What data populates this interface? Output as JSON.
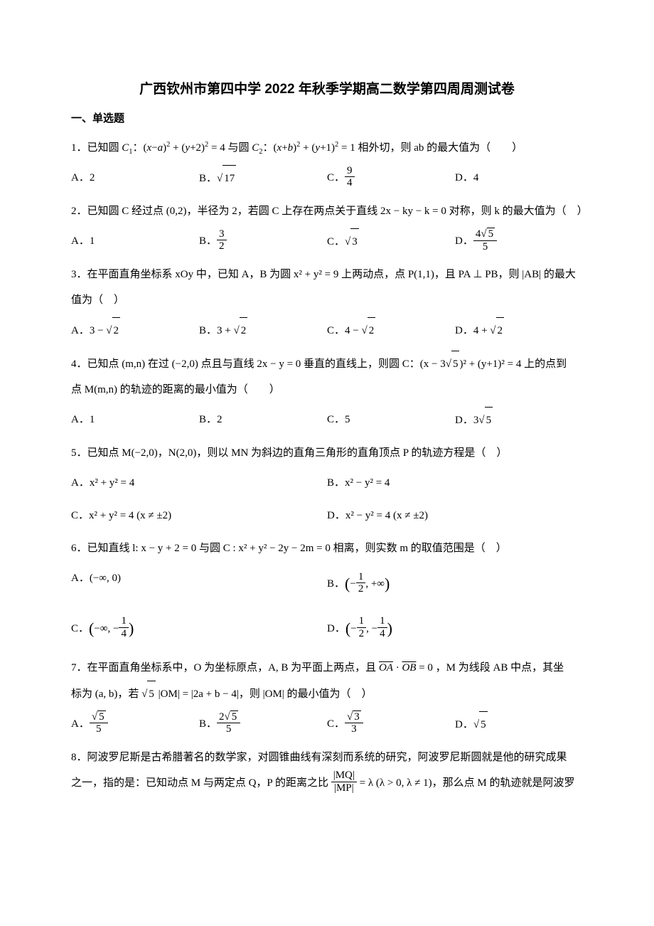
{
  "title": "广西钦州市第四中学 2022 年秋季学期高二数学第四周周测试卷",
  "section": "一、单选题",
  "q1": {
    "stem_pre": "1．已知圆",
    "c1": "C₁：(x−a)² + (y+2)² = 4",
    "mid": "与圆",
    "c2": "C₂：(x+b)² + (y+1)² = 1",
    "tail": "相外切，则 ab 的最大值为（　　）",
    "A": "A．2",
    "B_pre": "B．",
    "B_sqrt": "17",
    "C_pre": "C．",
    "C_num": "9",
    "C_den": "4",
    "D": "D．4"
  },
  "q2": {
    "stem": "2．已知圆 C 经过点 (0,2)，半径为 2，若圆 C 上存在两点关于直线 2x − ky − k = 0 对称，则 k 的最大值为（　）",
    "A": "A．1",
    "B_pre": "B．",
    "B_num": "3",
    "B_den": "2",
    "C_pre": "C．",
    "C_sqrt": "3",
    "D_pre": "D．",
    "D_num_sqrt": "5",
    "D_num_coef": "4",
    "D_den": "5"
  },
  "q3": {
    "stem": "3．在平面直角坐标系 xOy 中，已知 A，B 为圆 x² + y² = 9 上两动点，点 P(1,1)，且 PA ⊥ PB，则 |AB| 的最大值为（　）",
    "A_pre": "A．3 − ",
    "A_sqrt": "2",
    "B_pre": "B．3 + ",
    "B_sqrt": "2",
    "C_pre": "C．4 − ",
    "C_sqrt": "2",
    "D_pre": "D．4 + ",
    "D_sqrt": "2"
  },
  "q4": {
    "stem1": "4．已知点 (m,n) 在过 (−2,0) 点且与直线 2x − y = 0 垂直的直线上，则圆 C：(x − 3",
    "sqrt5": "5",
    "stem1b": ")² + (y+1)² = 4 上的点到",
    "stem2": "点 M(m,n) 的轨迹的距离的最小值为（　　）",
    "A": "A．1",
    "B": "B．2",
    "C": "C．5",
    "D_pre": "D．3",
    "D_sqrt": "5"
  },
  "q5": {
    "stem": "5．已知点 M(−2,0)，N(2,0)，则以 MN 为斜边的直角三角形的直角顶点 P 的轨迹方程是（　）",
    "A": "A．x² + y² = 4",
    "B": "B．x² − y² = 4",
    "C": "C．x² + y² = 4 (x ≠ ±2)",
    "D": "D．x² − y² = 4 (x ≠ ±2)"
  },
  "q6": {
    "stem": "6．已知直线 l: x − y + 2 = 0 与圆 C : x² + y² − 2y − 2m = 0 相离，则实数 m 的取值范围是（　）",
    "A": "A．(−∞, 0)",
    "B_pre": "B．",
    "B_open": "(−",
    "B_num": "1",
    "B_den": "2",
    "B_close": ", +∞)",
    "C_pre": "C．",
    "C_open": "(−∞, −",
    "C_num": "1",
    "C_den": "4",
    "C_close": ")",
    "D_pre": "D．",
    "D_open": "(−",
    "D1_num": "1",
    "D1_den": "2",
    "D_mid": ", −",
    "D2_num": "1",
    "D2_den": "4",
    "D_close": ")"
  },
  "q7": {
    "stem1": "7．在平面直角坐标系中，O 为坐标原点，A, B 为平面上两点，且 ",
    "vec1": "OA",
    "dot": " · ",
    "vec2": "OB",
    "stem1b": " = 0 ，M 为线段 AB 中点，其坐",
    "stem2a": "标为 (a, b)，若 ",
    "sqrt5a": "5",
    "stem2b": " |OM| = |2a + b − 4|，则 |OM| 的最小值为（　）",
    "A_pre": "A．",
    "A_num_sqrt": "5",
    "A_den": "5",
    "B_pre": "B．",
    "B_num_coef": "2",
    "B_num_sqrt": "5",
    "B_den": "5",
    "C_pre": "C．",
    "C_num_sqrt": "3",
    "C_den": "3",
    "D_pre": "D．",
    "D_sqrt": "5"
  },
  "q8": {
    "stem1": "8．阿波罗尼斯是古希腊著名的数学家，对圆锥曲线有深刻而系统的研究，阿波罗尼斯圆就是他的研究成果",
    "stem2a": "之一，指的是：已知动点 M 与两定点 Q，P 的距离之比 ",
    "frac_num": "|MQ|",
    "frac_den": "|MP|",
    "stem2b": " = λ (λ > 0, λ ≠ 1)，那么点 M 的轨迹就是阿波罗"
  }
}
